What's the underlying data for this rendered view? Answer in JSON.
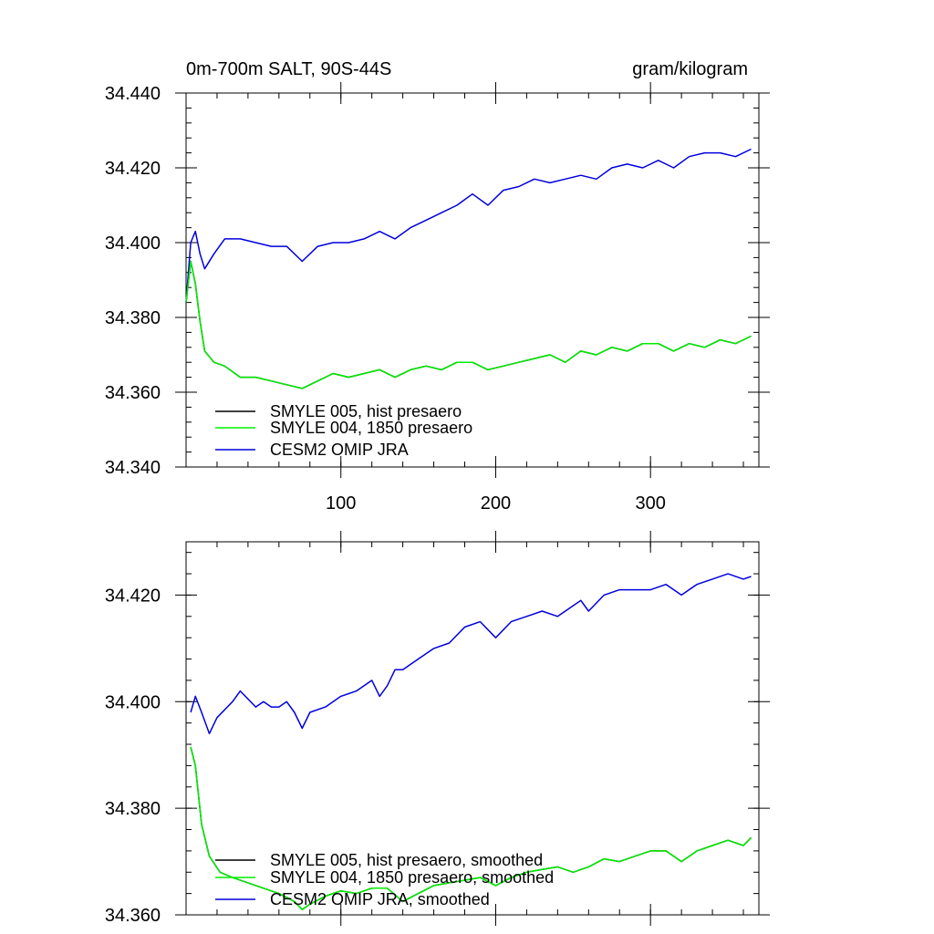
{
  "chart_data": [
    {
      "type": "line",
      "title": "0m-700m SALT, 90S-44S",
      "units": "gram/kilogram",
      "xlabel": "",
      "ylabel": "",
      "xlim": [
        0,
        370
      ],
      "ylim": [
        34.34,
        34.44
      ],
      "xticks": [
        100,
        200,
        300
      ],
      "xtick_labels": [
        "100",
        "200",
        "300"
      ],
      "yticks": [
        34.34,
        34.36,
        34.38,
        34.4,
        34.42,
        34.44
      ],
      "ytick_labels": [
        "34.340",
        "34.360",
        "34.380",
        "34.400",
        "34.420",
        "34.440"
      ],
      "legend_position": "bottom-left",
      "series": [
        {
          "name": "SMYLE 005, hist presaero",
          "color": "#000000",
          "x": [
            0,
            3,
            6,
            9,
            12,
            18,
            25,
            35,
            45,
            55,
            65,
            75,
            85,
            95,
            105,
            115,
            125,
            135,
            145,
            155,
            165,
            175,
            185,
            195,
            205,
            215,
            225,
            235,
            245,
            255,
            265,
            275,
            285,
            295,
            305,
            315,
            325,
            335,
            345,
            355,
            365
          ],
          "values": [
            34.384,
            34.395,
            34.389,
            34.379,
            34.371,
            34.368,
            34.367,
            34.364,
            34.364,
            34.363,
            34.362,
            34.361,
            34.363,
            34.365,
            34.364,
            34.365,
            34.366,
            34.364,
            34.366,
            34.367,
            34.366,
            34.368,
            34.368,
            34.366,
            34.367,
            34.368,
            34.369,
            34.37,
            34.368,
            34.371,
            34.37,
            34.372,
            34.371,
            34.373,
            34.373,
            34.371,
            34.373,
            34.372,
            34.374,
            34.373,
            34.375
          ]
        },
        {
          "name": "SMYLE 004, 1850 presaero",
          "color": "#00ee00",
          "x": [
            0,
            3,
            6,
            9,
            12,
            18,
            25,
            35,
            45,
            55,
            65,
            75,
            85,
            95,
            105,
            115,
            125,
            135,
            145,
            155,
            165,
            175,
            185,
            195,
            205,
            215,
            225,
            235,
            245,
            255,
            265,
            275,
            285,
            295,
            305,
            315,
            325,
            335,
            345,
            355,
            365
          ],
          "values": [
            34.384,
            34.395,
            34.389,
            34.379,
            34.371,
            34.368,
            34.367,
            34.364,
            34.364,
            34.363,
            34.362,
            34.361,
            34.363,
            34.365,
            34.364,
            34.365,
            34.366,
            34.364,
            34.366,
            34.367,
            34.366,
            34.368,
            34.368,
            34.366,
            34.367,
            34.368,
            34.369,
            34.37,
            34.368,
            34.371,
            34.37,
            34.372,
            34.371,
            34.373,
            34.373,
            34.371,
            34.373,
            34.372,
            34.374,
            34.373,
            34.375
          ]
        },
        {
          "name": "CESM2 OMIP JRA",
          "color": "#0000dd",
          "x": [
            0,
            3,
            6,
            9,
            12,
            18,
            25,
            35,
            45,
            55,
            65,
            75,
            85,
            95,
            105,
            115,
            125,
            135,
            145,
            155,
            165,
            175,
            185,
            195,
            205,
            215,
            225,
            235,
            245,
            255,
            265,
            275,
            285,
            295,
            305,
            315,
            325,
            335,
            345,
            355,
            365
          ],
          "values": [
            34.384,
            34.4,
            34.403,
            34.397,
            34.393,
            34.397,
            34.401,
            34.401,
            34.4,
            34.399,
            34.399,
            34.395,
            34.399,
            34.4,
            34.4,
            34.401,
            34.403,
            34.401,
            34.404,
            34.406,
            34.408,
            34.41,
            34.413,
            34.41,
            34.414,
            34.415,
            34.417,
            34.416,
            34.417,
            34.418,
            34.417,
            34.42,
            34.421,
            34.42,
            34.422,
            34.42,
            34.423,
            34.424,
            34.424,
            34.423,
            34.425
          ]
        }
      ]
    },
    {
      "type": "line",
      "title": "",
      "xlabel": "",
      "ylabel": "",
      "xlim": [
        0,
        370
      ],
      "ylim": [
        34.36,
        34.43
      ],
      "xticks": [
        100,
        200,
        300
      ],
      "xtick_labels": [
        "",
        "",
        ""
      ],
      "yticks": [
        34.36,
        34.38,
        34.4,
        34.42
      ],
      "ytick_labels": [
        "34.360",
        "34.380",
        "34.400",
        "34.420"
      ],
      "legend_position": "bottom-left",
      "series": [
        {
          "name": "SMYLE 005, hist presaero, smoothed",
          "color": "#000000",
          "x": [
            3,
            6,
            10,
            15,
            22,
            30,
            40,
            50,
            60,
            70,
            75,
            80,
            90,
            100,
            110,
            120,
            130,
            140,
            150,
            160,
            170,
            180,
            190,
            200,
            210,
            220,
            230,
            240,
            250,
            260,
            270,
            280,
            290,
            300,
            310,
            320,
            330,
            340,
            350,
            360,
            365
          ],
          "values": [
            34.3915,
            34.388,
            34.377,
            34.371,
            34.368,
            34.367,
            34.366,
            34.365,
            34.364,
            34.3625,
            34.361,
            34.362,
            34.3635,
            34.3645,
            34.364,
            34.365,
            34.365,
            34.3625,
            34.364,
            34.3655,
            34.366,
            34.3665,
            34.367,
            34.3655,
            34.367,
            34.368,
            34.3685,
            34.369,
            34.368,
            34.369,
            34.3705,
            34.37,
            34.371,
            34.372,
            34.372,
            34.37,
            34.372,
            34.373,
            34.374,
            34.373,
            34.3745
          ]
        },
        {
          "name": "SMYLE 004, 1850 presaero, smoothed",
          "color": "#00ee00",
          "x": [
            3,
            6,
            10,
            15,
            22,
            30,
            40,
            50,
            60,
            70,
            75,
            80,
            90,
            100,
            110,
            120,
            130,
            140,
            150,
            160,
            170,
            180,
            190,
            200,
            210,
            220,
            230,
            240,
            250,
            260,
            270,
            280,
            290,
            300,
            310,
            320,
            330,
            340,
            350,
            360,
            365
          ],
          "values": [
            34.3915,
            34.388,
            34.377,
            34.371,
            34.368,
            34.367,
            34.366,
            34.365,
            34.364,
            34.3625,
            34.361,
            34.362,
            34.3635,
            34.3645,
            34.364,
            34.365,
            34.365,
            34.3625,
            34.364,
            34.3655,
            34.366,
            34.3665,
            34.367,
            34.3655,
            34.367,
            34.368,
            34.3685,
            34.369,
            34.368,
            34.369,
            34.3705,
            34.37,
            34.371,
            34.372,
            34.372,
            34.37,
            34.372,
            34.373,
            34.374,
            34.373,
            34.3745
          ]
        },
        {
          "name": "CESM2 OMIP JRA, smoothed",
          "color": "#0000dd",
          "x": [
            3,
            6,
            10,
            15,
            20,
            30,
            35,
            45,
            50,
            55,
            60,
            65,
            70,
            75,
            80,
            90,
            100,
            110,
            120,
            125,
            130,
            135,
            140,
            150,
            160,
            170,
            180,
            190,
            200,
            210,
            220,
            230,
            240,
            250,
            255,
            260,
            270,
            280,
            290,
            300,
            310,
            320,
            330,
            340,
            350,
            360,
            365
          ],
          "values": [
            34.398,
            34.401,
            34.398,
            34.394,
            34.397,
            34.4,
            34.402,
            34.399,
            34.4,
            34.399,
            34.399,
            34.4,
            34.398,
            34.395,
            34.398,
            34.399,
            34.401,
            34.402,
            34.404,
            34.401,
            34.403,
            34.406,
            34.406,
            34.408,
            34.41,
            34.411,
            34.414,
            34.415,
            34.412,
            34.415,
            34.416,
            34.417,
            34.416,
            34.418,
            34.419,
            34.417,
            34.42,
            34.421,
            34.421,
            34.421,
            34.422,
            34.42,
            34.422,
            34.423,
            34.424,
            34.423,
            34.4235
          ]
        }
      ]
    }
  ]
}
